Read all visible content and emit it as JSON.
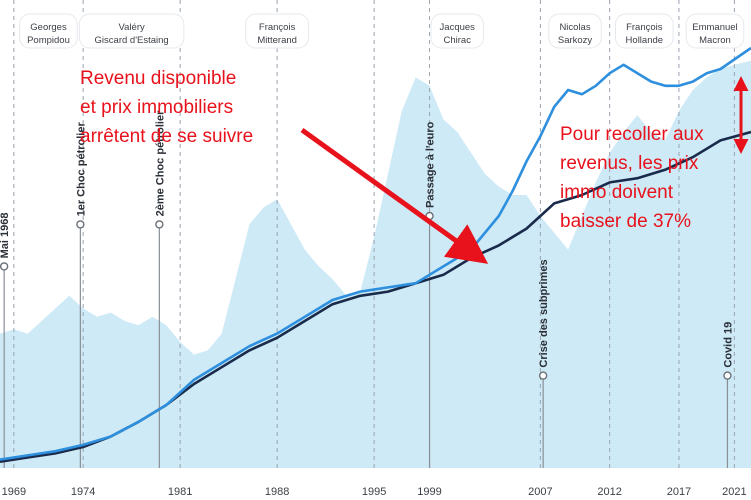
{
  "chart_data": {
    "type": "line",
    "title": "",
    "xlabel": "",
    "ylabel": "",
    "xlim": [
      1968,
      2022.2
    ],
    "ylim": [
      0,
      100
    ],
    "grid": "vertical dashed",
    "x_ticks": [
      1969,
      1974,
      1981,
      1988,
      1995,
      1999,
      2007,
      2012,
      2017,
      2021
    ],
    "presidents": [
      {
        "name": "Georges\nPompidou",
        "from": 1969,
        "to": 1974
      },
      {
        "name": "Valéry\nGiscard d'Estaing",
        "from": 1974,
        "to": 1981
      },
      {
        "name": "François\nMitterand",
        "from": 1981,
        "to": 1995
      },
      {
        "name": "Jacques\nChirac",
        "from": 1995,
        "to": 2007
      },
      {
        "name": "Nicolas\nSarkozy",
        "from": 2007,
        "to": 2012
      },
      {
        "name": "François\nHollande",
        "from": 2012,
        "to": 2017
      },
      {
        "name": "Emmanuel\nMacron",
        "from": 2017,
        "to": 2022.2
      }
    ],
    "events": [
      {
        "label": "Mai 1968",
        "x": 1968.3,
        "y": 48
      },
      {
        "label": "1er Choc pétrolier",
        "x": 1973.8,
        "y": 58
      },
      {
        "label": "2ème Choc pétrolier",
        "x": 1979.5,
        "y": 58
      },
      {
        "label": "Passage à l'euro",
        "x": 1999,
        "y": 60
      },
      {
        "label": "Crise des subprimes",
        "x": 2007.2,
        "y": 22
      },
      {
        "label": "Covid 19",
        "x": 2020.5,
        "y": 22
      }
    ],
    "series": [
      {
        "name": "",
        "kind": "area",
        "color": "#cdeaf6",
        "x": [
          1968,
          1969,
          1970,
          1971,
          1972,
          1973,
          1974,
          1975,
          1976,
          1977,
          1978,
          1979,
          1980,
          1981,
          1982,
          1983,
          1984,
          1985,
          1986,
          1987,
          1988,
          1989,
          1990,
          1991,
          1992,
          1993,
          1994,
          1995,
          1996,
          1997,
          1998,
          1999,
          2000,
          2001,
          2002,
          2003,
          2004,
          2005,
          2006,
          2007,
          2008,
          2009,
          2010,
          2011,
          2012,
          2013,
          2014,
          2015,
          2016,
          2017,
          2018,
          2019,
          2020,
          2021,
          2022.2
        ],
        "y": [
          32,
          33,
          32,
          35,
          38,
          41,
          38,
          36,
          37,
          35,
          34,
          36,
          34,
          30,
          27,
          28,
          32,
          45,
          58,
          62,
          64,
          58,
          52,
          48,
          45,
          41,
          42,
          55,
          70,
          85,
          93,
          91,
          83,
          80,
          75,
          70,
          67,
          65,
          65,
          60,
          56,
          52,
          60,
          68,
          75,
          80,
          84,
          80,
          78,
          85,
          90,
          93,
          95,
          96,
          97
        ]
      },
      {
        "name": "",
        "kind": "line",
        "color": "#1a2a4a",
        "x": [
          1968,
          1970,
          1972,
          1974,
          1976,
          1978,
          1980,
          1982,
          1984,
          1986,
          1988,
          1990,
          1992,
          1994,
          1996,
          1998,
          2000,
          2002,
          2004,
          2006,
          2007,
          2008,
          2009,
          2010,
          2012,
          2014,
          2016,
          2018,
          2020,
          2022.2
        ],
        "y": [
          1.5,
          2.5,
          3.5,
          5,
          7.5,
          11,
          15,
          20,
          24,
          28,
          31,
          35,
          39,
          41,
          42,
          44,
          46,
          50,
          53,
          57,
          60,
          63,
          64,
          65,
          68,
          69,
          71,
          74,
          78,
          80
        ]
      },
      {
        "name": "",
        "kind": "line",
        "color": "#2d8fde",
        "x": [
          1968,
          1970,
          1972,
          1974,
          1976,
          1978,
          1980,
          1982,
          1984,
          1986,
          1988,
          1990,
          1992,
          1994,
          1996,
          1998,
          2000,
          2002,
          2004,
          2005,
          2006,
          2007,
          2008,
          2009,
          2010,
          2011,
          2012,
          2013,
          2014,
          2015,
          2016,
          2017,
          2018,
          2019,
          2020,
          2022.2
        ],
        "y": [
          2,
          3,
          4,
          5.5,
          7.5,
          11,
          15,
          21,
          25,
          29,
          32,
          36,
          40,
          42,
          43,
          44,
          48,
          52,
          60,
          66,
          73,
          79,
          86,
          90,
          89,
          91,
          94,
          96,
          94,
          92,
          91,
          91,
          92,
          94,
          95,
          100
        ]
      }
    ]
  },
  "annotations": {
    "left_text": [
      "Revenu disponible",
      "et prix immobiliers",
      "arrêtent de se suivre"
    ],
    "right_text": [
      "Pour recoller aux",
      "revenus, les prix",
      "immo doivent",
      "baisser de 37%"
    ],
    "color": "#e8121c"
  }
}
